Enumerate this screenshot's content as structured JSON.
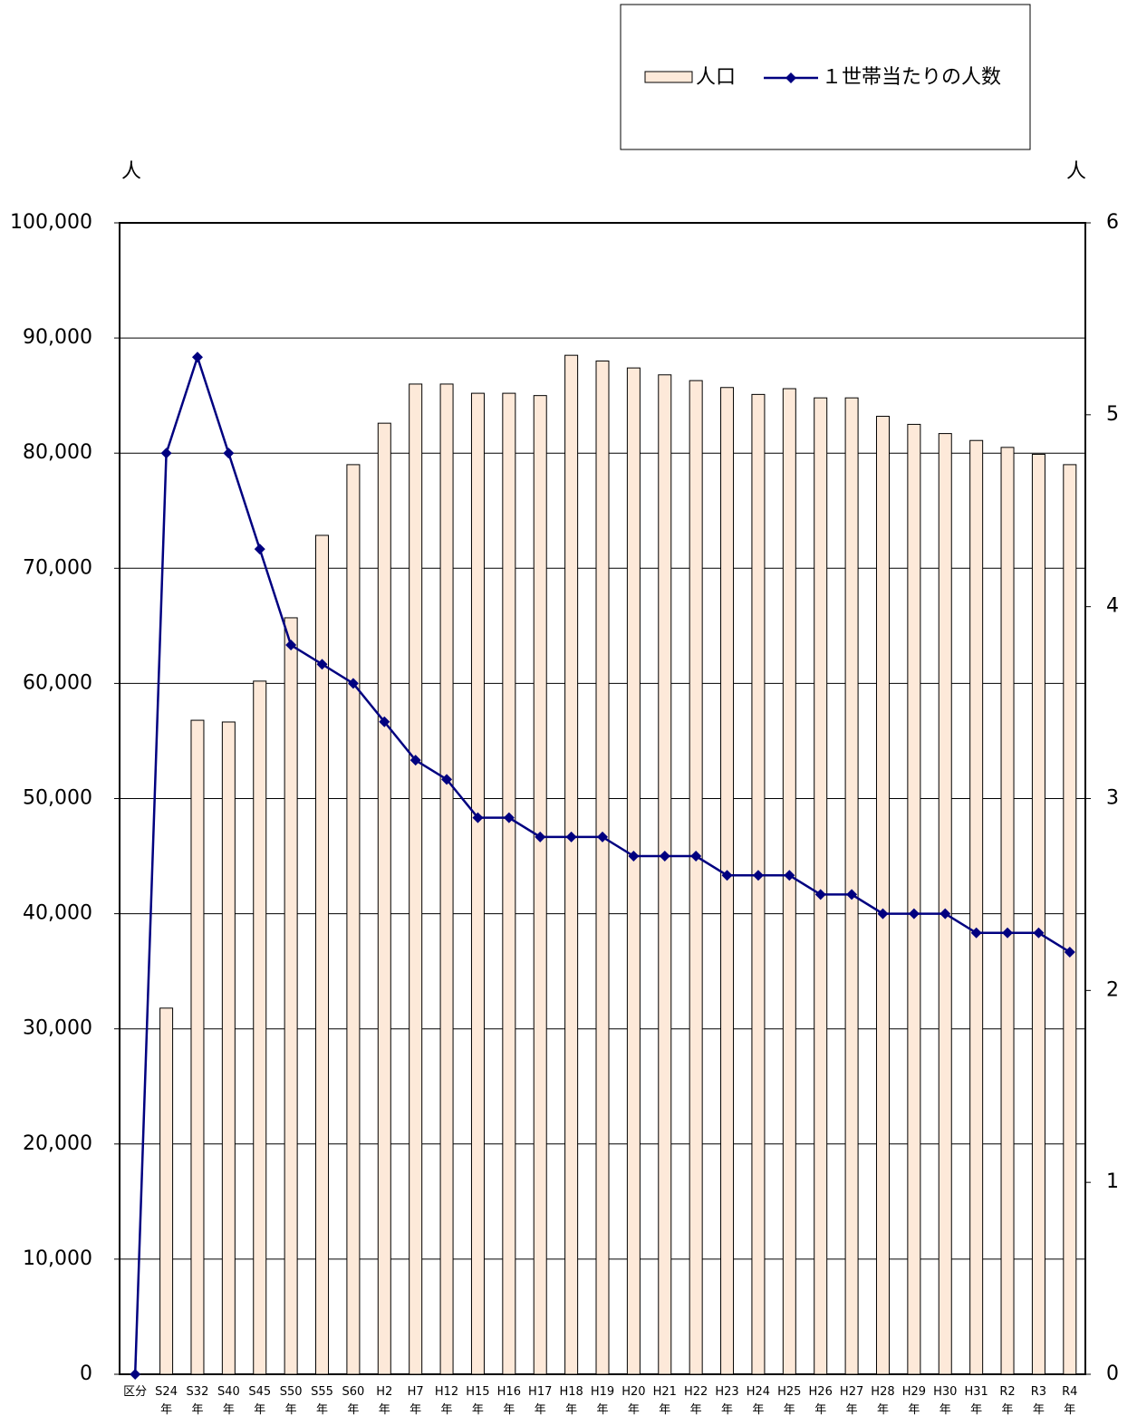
{
  "chart_data": {
    "type": "bar_line",
    "y_label": "人",
    "y2_label": "人",
    "categories": [
      "区分",
      "S24年",
      "S32年",
      "S40年",
      "S45年",
      "S50年",
      "S55年",
      "S60年",
      "H2年",
      "H7年",
      "H12年",
      "H15年",
      "H16年",
      "H17年",
      "H18年",
      "H19年",
      "H20年",
      "H21年",
      "H22年",
      "H23年",
      "H24年",
      "H25年",
      "H26年",
      "H27年",
      "H28年",
      "H29年",
      "H30年",
      "H31年",
      "R2年",
      "R3年",
      "R4年"
    ],
    "series": [
      {
        "name": "人口",
        "type": "bar",
        "color": "#fde9d9",
        "values": [
          null,
          31800,
          56800,
          56650,
          60200,
          65700,
          72860,
          79000,
          82600,
          86000,
          86000,
          85200,
          85200,
          85000,
          88500,
          88000,
          87400,
          86800,
          86300,
          85700,
          85100,
          85600,
          84800,
          84800,
          83200,
          82500,
          81700,
          81100,
          80500,
          79900,
          79000
        ]
      },
      {
        "name": "１世帯当たりの人数",
        "type": "line",
        "axis": "y2",
        "color": "#000080",
        "values": [
          0,
          4.8,
          5.3,
          4.8,
          4.3,
          3.8,
          3.7,
          3.6,
          3.4,
          3.2,
          3.1,
          2.9,
          2.9,
          2.8,
          2.8,
          2.8,
          2.7,
          2.7,
          2.7,
          2.6,
          2.6,
          2.6,
          2.5,
          2.5,
          2.4,
          2.4,
          2.4,
          2.3,
          2.3,
          2.3,
          2.2
        ]
      }
    ],
    "ylim": [
      0,
      100000
    ],
    "yticks": [
      0,
      {
        "value": 10000,
        "label": "10,000"
      },
      {
        "value": 20000,
        "label": "20,000"
      },
      {
        "value": 30000,
        "label": "30,000"
      },
      {
        "value": 40000,
        "label": "40,000"
      },
      {
        "value": 50000,
        "label": "50,000"
      },
      {
        "value": 60000,
        "label": "60,000"
      },
      {
        "value": 70000,
        "label": "70,000"
      },
      {
        "value": 80000,
        "label": "80,000"
      },
      {
        "value": 90000,
        "label": "90,000"
      },
      {
        "value": 100000,
        "label": "100,000"
      }
    ],
    "y2lim": [
      0,
      6
    ],
    "y2ticks": [
      0,
      1,
      2,
      3,
      4,
      5,
      6
    ],
    "grid": true
  }
}
